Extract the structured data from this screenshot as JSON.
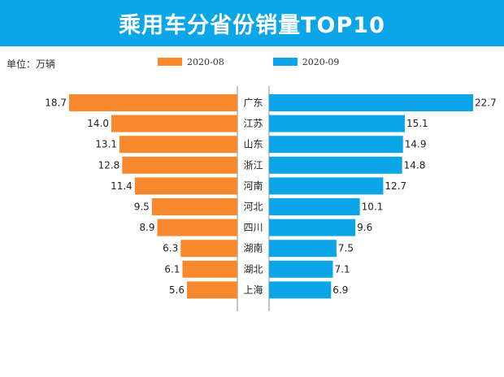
{
  "chart_data": {
    "type": "bar",
    "orientation": "horizontal-butterfly",
    "title": "乘用车分省份销量TOP10",
    "unit_label": "单位：万辆",
    "categories": [
      "广东",
      "江苏",
      "山东",
      "浙江",
      "河南",
      "河北",
      "四川",
      "湖南",
      "湖北",
      "上海"
    ],
    "series": [
      {
        "name": "2020-08",
        "side": "left",
        "color": "#f7882d",
        "values": [
          18.7,
          14.0,
          13.1,
          12.8,
          11.4,
          9.5,
          8.9,
          6.3,
          6.1,
          5.6
        ],
        "labels": [
          "18.7",
          "14.0",
          "13.1",
          "12.8",
          "11.4",
          "9.5",
          "8.9",
          "6.3",
          "6.1",
          "5.6"
        ]
      },
      {
        "name": "2020-09",
        "side": "right",
        "color": "#0aa6e8",
        "values": [
          22.7,
          15.1,
          14.9,
          14.8,
          12.7,
          10.1,
          9.6,
          7.5,
          7.1,
          6.9
        ],
        "labels": [
          "22.7",
          "15.1",
          "14.9",
          "14.8",
          "12.7",
          "10.1",
          "9.6",
          "7.5",
          "7.1",
          "6.9"
        ]
      }
    ],
    "legend_position": "top-center",
    "grid": false
  }
}
